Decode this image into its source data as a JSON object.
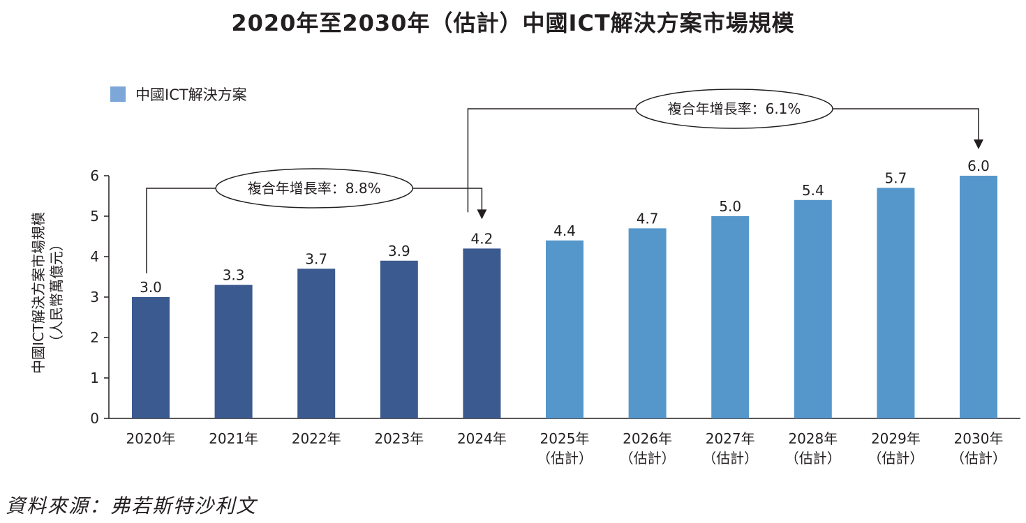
{
  "title": "2020年至2030年（估計）中國ICT解決方案市場規模",
  "legend": {
    "label": "中國ICT解決方案",
    "color": "#7da7d9"
  },
  "source": "資料來源：弗若斯特沙利文",
  "colors": {
    "actual": "#3b5a8f",
    "estimate": "#5597cb"
  },
  "chart_data": {
    "type": "bar",
    "title": "2020年至2030年（估計）中國ICT解決方案市場規模",
    "ylabel": [
      "中國ICT解決方案市場規模",
      "（人民幣萬億元）"
    ],
    "xlabel": "",
    "ylim": [
      0,
      6
    ],
    "yticks": [
      0,
      1,
      2,
      3,
      4,
      5,
      6
    ],
    "categories": [
      [
        "2020年"
      ],
      [
        "2021年"
      ],
      [
        "2022年"
      ],
      [
        "2023年"
      ],
      [
        "2024年"
      ],
      [
        "2025年",
        "（估計）"
      ],
      [
        "2026年",
        "（估計）"
      ],
      [
        "2027年",
        "（估計）"
      ],
      [
        "2028年",
        "（估計）"
      ],
      [
        "2029年",
        "（估計）"
      ],
      [
        "2030年",
        "（估計）"
      ]
    ],
    "values": [
      3.0,
      3.3,
      3.7,
      3.9,
      4.2,
      4.4,
      4.7,
      5.0,
      5.4,
      5.7,
      6.0
    ],
    "value_labels": [
      "3.0",
      "3.3",
      "3.7",
      "3.9",
      "4.2",
      "4.4",
      "4.7",
      "5.0",
      "5.4",
      "5.7",
      "6.0"
    ],
    "estimated": [
      false,
      false,
      false,
      false,
      false,
      true,
      true,
      true,
      true,
      true,
      true
    ],
    "annotations": [
      {
        "label": "複合年增長率：8.8%",
        "from_index": 0,
        "to_index": 4
      },
      {
        "label": "複合年增長率：6.1%",
        "from_index": 4,
        "to_index": 10
      }
    ]
  }
}
